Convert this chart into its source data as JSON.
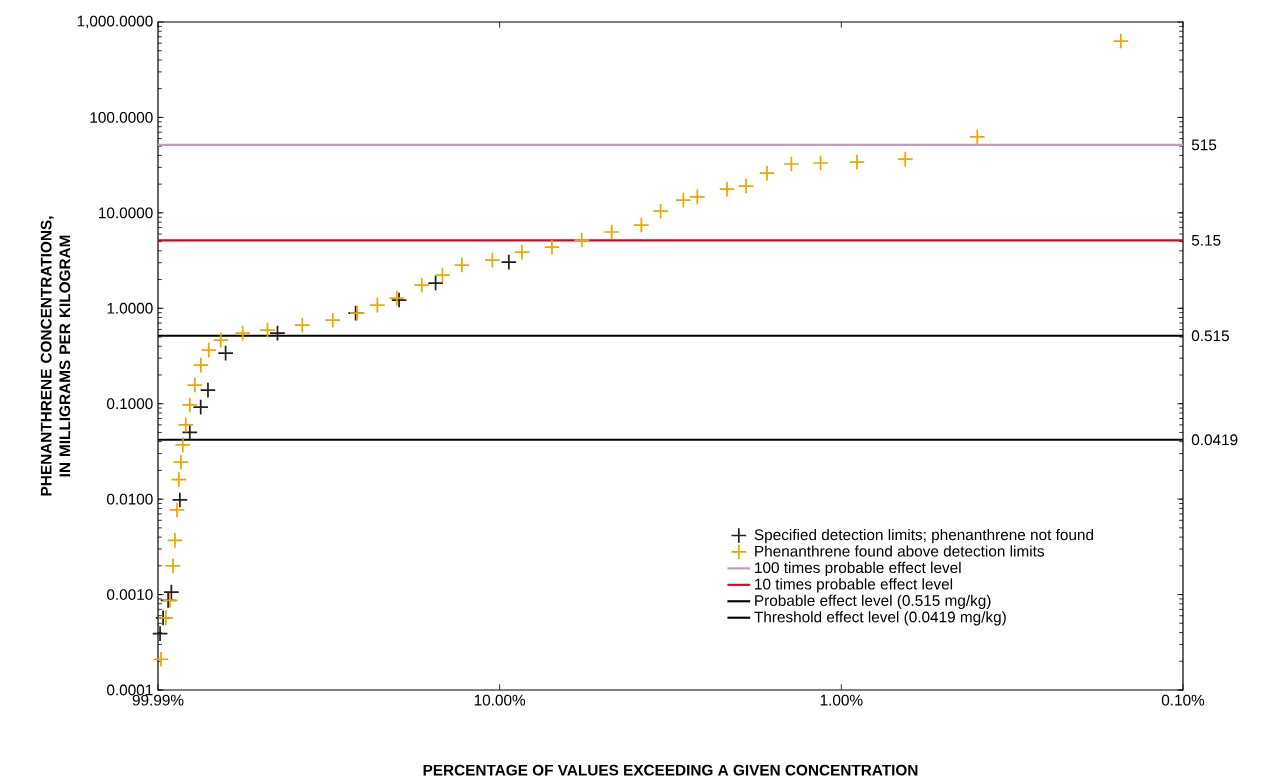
{
  "chart_data": {
    "type": "scatter",
    "xlabel": "PERCENTAGE OF VALUES EXCEEDING A GIVEN CONCENTRATION",
    "ylabel": "PHENANTHRENE CONCENTRATIONS, IN MILLIGRAMS PER KILOGRAM",
    "log": "xy",
    "legend": "bottom right",
    "grid": false,
    "xlim": [
      99.99,
      0.1
    ],
    "ylim": [
      0.0001,
      1000
    ],
    "xticks": [
      {
        "value": 99.99,
        "label": "99.99%"
      },
      {
        "value": 10,
        "label": "10.00%"
      },
      {
        "value": 1,
        "label": "1.00%"
      },
      {
        "value": 0.1,
        "label": "0.10%"
      }
    ],
    "yticks": [
      {
        "value": 0.0001,
        "label": "0.0001"
      },
      {
        "value": 0.001,
        "label": "0.0010"
      },
      {
        "value": 0.01,
        "label": "0.0100"
      },
      {
        "value": 0.1,
        "label": "0.1000"
      },
      {
        "value": 1,
        "label": "1.0000"
      },
      {
        "value": 10,
        "label": "10.0000"
      },
      {
        "value": 100,
        "label": "100.0000"
      },
      {
        "value": 1000,
        "label": "1,000.0000"
      }
    ],
    "series": [
      {
        "name": "Specified detection limits; phenanthrene not found",
        "color": "#231f20",
        "marker": "cross",
        "x": [
          98.6,
          96.6,
          93.4,
          91.4,
          86.3,
          80.7,
          75.0,
          71.4,
          63.4,
          44.7,
          26.4,
          19.7,
          15.4,
          9.4
        ],
        "values": [
          0.00039,
          0.00057,
          0.00087,
          0.00106,
          0.0098,
          0.05,
          0.092,
          0.139,
          0.339,
          0.55,
          0.89,
          1.22,
          1.84,
          3.05
        ]
      },
      {
        "name": "Phenanthrene found above detection limits",
        "color": "#eaa800",
        "marker": "cross",
        "x": [
          98,
          94.8,
          92.2,
          90.4,
          89.2,
          88.0,
          86.9,
          85.7,
          84.6,
          82.9,
          80.7,
          78.0,
          74.9,
          71.0,
          65.5,
          56.5,
          47.8,
          37.8,
          30.8,
          26.1,
          22.8,
          20.0,
          16.9,
          14.7,
          12.9,
          10.5,
          8.6,
          7.03,
          5.75,
          4.7,
          3.85,
          3.38,
          2.9,
          2.64,
          2.16,
          1.9,
          1.65,
          1.4,
          1.15,
          0.9,
          0.65,
          0.4,
          0.152
        ],
        "values": [
          0.00021,
          0.00057,
          0.00087,
          0.002,
          0.0037,
          0.0077,
          0.016,
          0.0244,
          0.037,
          0.06,
          0.097,
          0.157,
          0.254,
          0.365,
          0.464,
          0.55,
          0.59,
          0.667,
          0.75,
          0.89,
          1.08,
          1.28,
          1.75,
          2.23,
          2.84,
          3.2,
          3.88,
          4.38,
          5.19,
          6.3,
          7.45,
          10.4,
          13.6,
          14.7,
          17.7,
          19.1,
          26.1,
          32.5,
          33.3,
          34.1,
          36.6,
          62.4,
          632
        ]
      },
      {
        "name": "100 times probable effect level",
        "color": "#c799c0",
        "type": "line",
        "x": [
          99.99,
          0.1
        ],
        "values": [
          51.5,
          51.5
        ]
      },
      {
        "name": "10 times probable effect level",
        "color": "#e2001a",
        "type": "line",
        "x": [
          99.99,
          0.1
        ],
        "values": [
          5.15,
          5.15
        ]
      },
      {
        "name": "Probable effect level (0.515 mg/kg)",
        "color": "#000000",
        "type": "line",
        "x": [
          99.99,
          0.1
        ],
        "values": [
          0.515,
          0.515
        ]
      },
      {
        "name": "Threshold effect level (0.0419 mg/kg)",
        "color": "#000000",
        "type": "line",
        "x": [
          99.99,
          0.1
        ],
        "values": [
          0.0419,
          0.0419
        ]
      }
    ],
    "annotations": [
      "515",
      "5.15",
      "0.515",
      "0.0419"
    ]
  }
}
